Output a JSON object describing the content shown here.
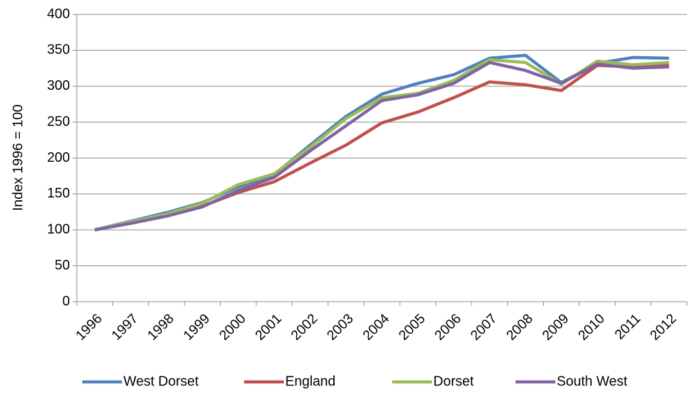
{
  "chart_data": {
    "type": "line",
    "y_label": "Index 1996  = 100",
    "categories": [
      "1996",
      "1997",
      "1998",
      "1999",
      "2000",
      "2001",
      "2002",
      "2003",
      "2004",
      "2005",
      "2006",
      "2007",
      "2008",
      "2009",
      "2010",
      "2011",
      "2012"
    ],
    "series": [
      {
        "name": "West Dorset",
        "color": "#4f81bd",
        "values": [
          100,
          112,
          124,
          138,
          160,
          177,
          218,
          258,
          289,
          304,
          316,
          339,
          343,
          305,
          332,
          340,
          339
        ]
      },
      {
        "name": "England",
        "color": "#c0504d",
        "values": [
          100,
          110,
          120,
          133,
          152,
          167,
          193,
          218,
          249,
          264,
          284,
          306,
          302,
          294,
          329,
          327,
          329
        ]
      },
      {
        "name": "Dorset",
        "color": "#9bbb59",
        "values": [
          100,
          111,
          122,
          137,
          163,
          178,
          215,
          255,
          284,
          290,
          308,
          337,
          333,
          303,
          335,
          330,
          333
        ]
      },
      {
        "name": "South West",
        "color": "#8064a2",
        "values": [
          100,
          109,
          119,
          132,
          155,
          173,
          210,
          245,
          280,
          288,
          304,
          333,
          322,
          304,
          331,
          325,
          327
        ]
      }
    ],
    "ylim": [
      0,
      400
    ],
    "yticks": [
      0,
      50,
      100,
      150,
      200,
      250,
      300,
      350,
      400
    ],
    "grid": true,
    "legend": "bottom"
  }
}
